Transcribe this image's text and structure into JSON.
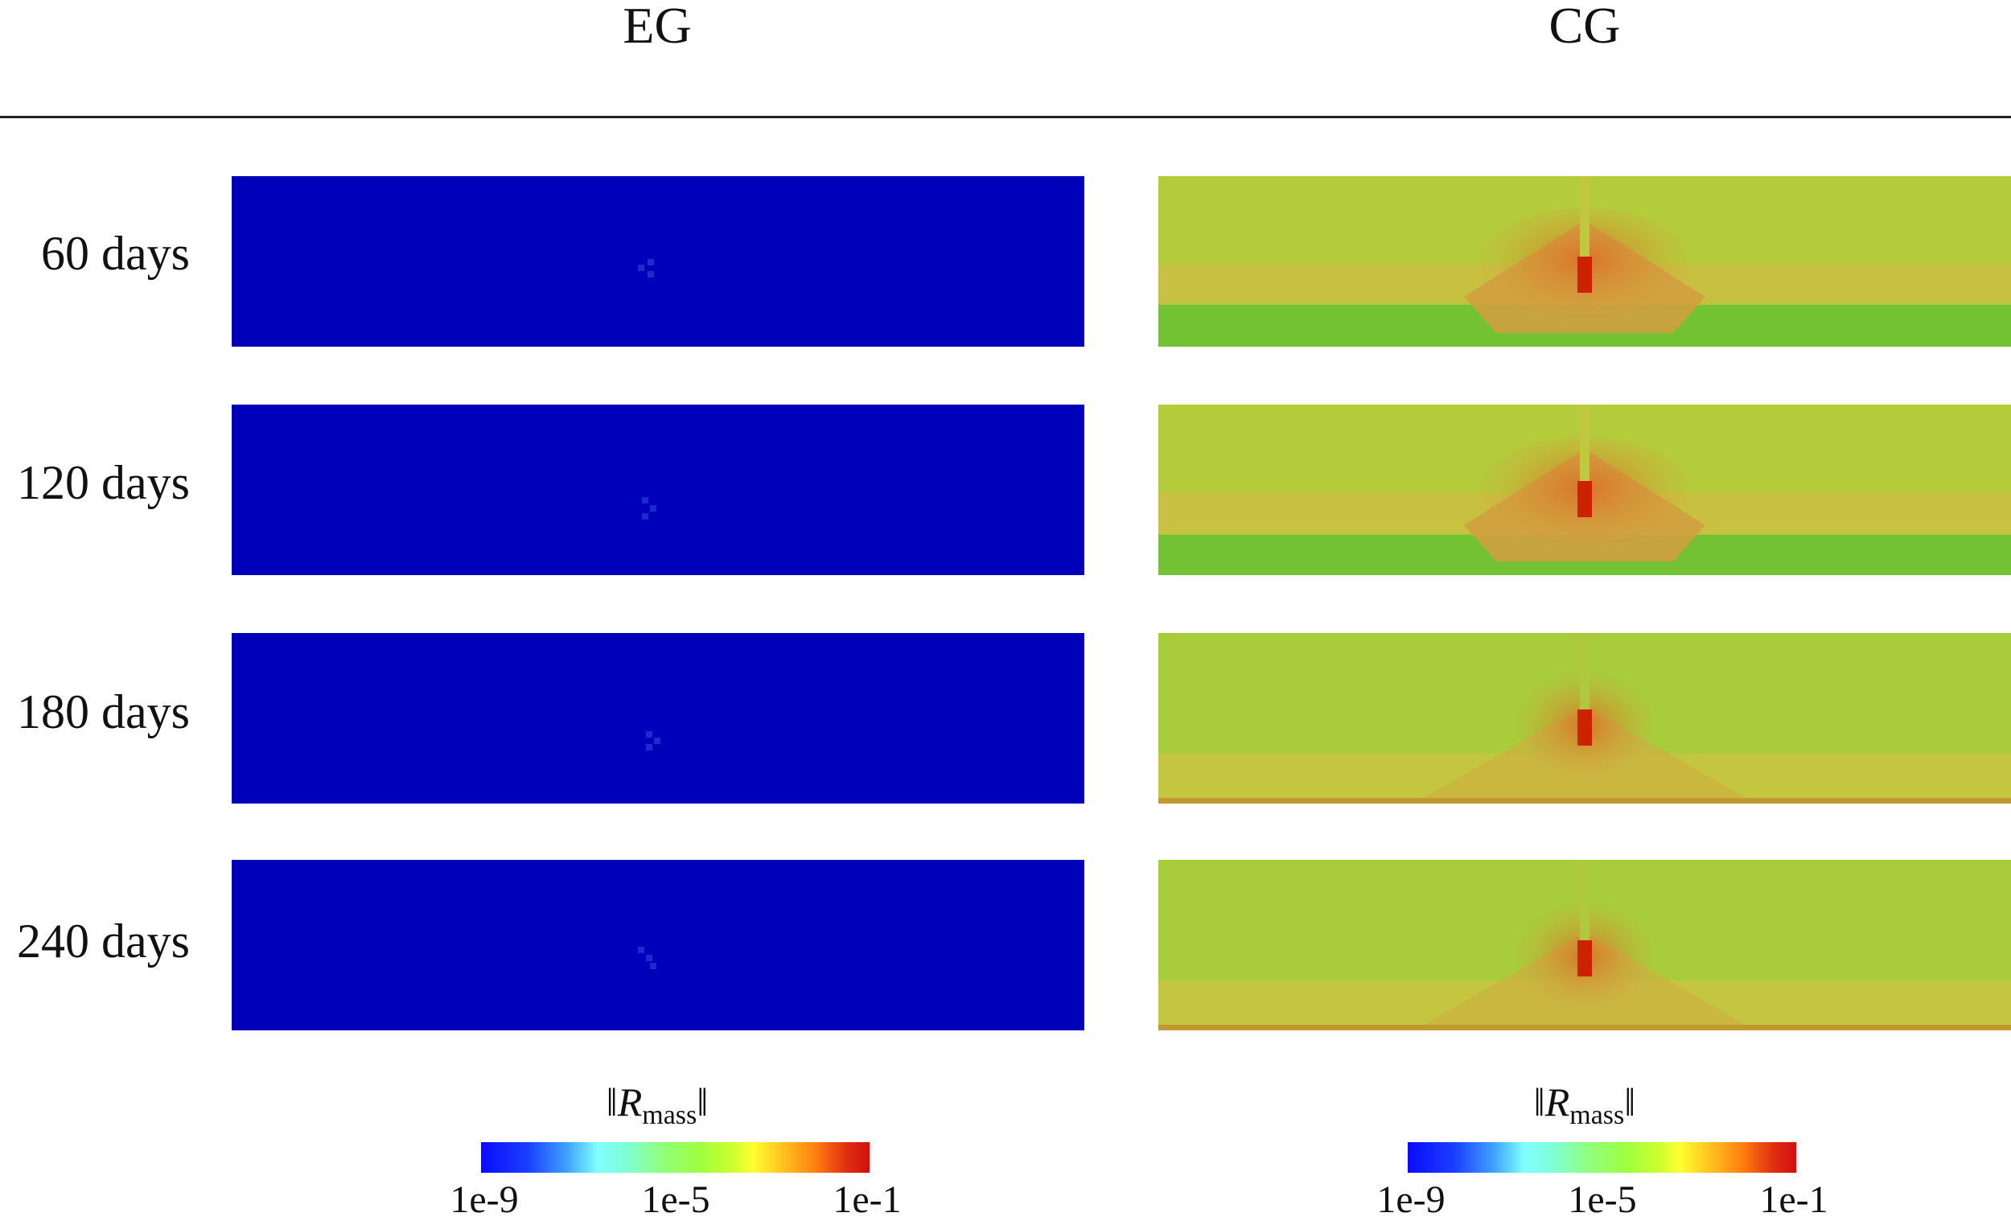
{
  "columns": [
    {
      "title": "EG"
    },
    {
      "title": "CG"
    }
  ],
  "rows": [
    {
      "label": "60 days"
    },
    {
      "label": "120 days"
    },
    {
      "label": "180 days"
    },
    {
      "label": "240 days"
    }
  ],
  "colorbar": {
    "symbol": "R",
    "subscript": "mass",
    "ticks": [
      "1e-9",
      "1e-5",
      "1e-1"
    ],
    "scale": "log",
    "range": [
      1e-09,
      0.1
    ]
  },
  "colors": {
    "eg_background": "#0000bb",
    "cg_background": "#b2c934",
    "cg_low_band": "#72c234",
    "cg_hotspot": "#cc2200"
  }
}
